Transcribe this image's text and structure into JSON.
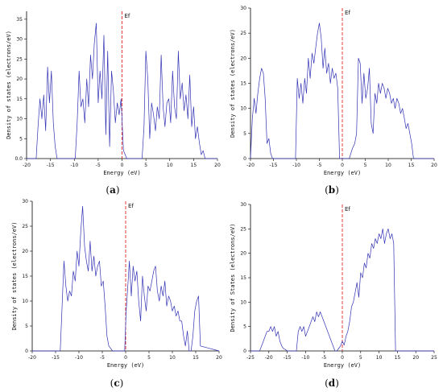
{
  "panel_labels": [
    "(a)",
    "(b)",
    "(c)",
    "(d)"
  ],
  "ef_label": "Ef",
  "chart_data": [
    {
      "id": "a",
      "type": "line",
      "xlabel": "Energy (eV)",
      "ylabel": "Density of states (electrons/eV)",
      "xlim": [
        -20,
        20
      ],
      "ylim": [
        0,
        37
      ],
      "xticks": [
        -20,
        -15,
        -10,
        -5,
        0,
        5,
        10,
        15,
        20
      ],
      "yticks": [
        0,
        5,
        10,
        15,
        20,
        25,
        30,
        35
      ],
      "ytick_labels": [
        "0.0",
        "5",
        "10",
        "15",
        "20",
        "25",
        "30",
        "35"
      ],
      "fermi_level": 0,
      "series": [
        {
          "x": [
            -20,
            -18,
            -17.6,
            -17.2,
            -16.8,
            -16.4,
            -16,
            -15.6,
            -15.2,
            -14.8,
            -14.4,
            -14,
            -13.6,
            -12,
            -9.8,
            -9.4,
            -9,
            -8.6,
            -8.2,
            -7.8,
            -7.4,
            -7,
            -6.6,
            -6.2,
            -5.8,
            -5.4,
            -5,
            -4.6,
            -4.2,
            -3.8,
            -3.4,
            -3,
            -2.6,
            -2.2,
            -1.8,
            -1.4,
            -1,
            -0.6,
            -0.2,
            0.3,
            1,
            4.2,
            4.6,
            5,
            5.4,
            5.8,
            6.2,
            6.6,
            7,
            7.4,
            7.8,
            8.2,
            8.6,
            9,
            9.4,
            9.8,
            10.2,
            10.6,
            11,
            11.4,
            11.8,
            12.2,
            12.6,
            13,
            13.4,
            13.8,
            14.2,
            14.6,
            15,
            15.4,
            15.8,
            16.2,
            16.6,
            17,
            17.4,
            20
          ],
          "y": [
            0,
            0,
            8,
            15,
            10,
            16,
            7,
            23,
            14,
            22,
            9,
            3,
            0,
            0,
            0,
            9,
            22,
            13,
            15,
            9,
            20,
            13,
            26,
            20,
            29,
            34,
            14,
            22,
            15,
            31,
            6,
            27,
            3,
            22,
            17,
            9,
            14,
            11,
            15,
            2,
            0,
            0,
            8,
            27,
            20,
            5,
            14,
            11,
            7,
            13,
            10,
            26,
            13,
            8,
            14,
            15,
            9,
            22,
            13,
            10,
            27,
            15,
            19,
            12,
            16,
            10,
            21,
            8,
            13,
            5,
            8,
            4,
            1,
            2,
            0,
            0
          ]
        }
      ]
    },
    {
      "id": "b",
      "type": "line",
      "xlabel": "Energy (eV)",
      "ylabel": "Density of states (electrons/eV)",
      "xlim": [
        -20,
        20
      ],
      "ylim": [
        0,
        30
      ],
      "xticks": [
        -20,
        -15,
        -10,
        -5,
        0,
        5,
        10,
        15,
        20
      ],
      "yticks": [
        0,
        5,
        10,
        15,
        20,
        25,
        30
      ],
      "ytick_labels": [
        "0",
        "5",
        "10",
        "15",
        "20",
        "25",
        "30"
      ],
      "fermi_level": 0,
      "series": [
        {
          "x": [
            -20,
            -19.6,
            -19.2,
            -18.8,
            -18.4,
            -18,
            -17.6,
            -17.2,
            -16.8,
            -16.4,
            -16,
            -15.6,
            -15.2,
            -14.8,
            -14.4,
            -14,
            -13.6,
            -12,
            -10.2,
            -9.8,
            -9.4,
            -9,
            -8.6,
            -8.2,
            -7.8,
            -7.4,
            -7,
            -6.6,
            -6.2,
            -5.8,
            -5.4,
            -5,
            -4.6,
            -4.2,
            -3.8,
            -3.4,
            -3,
            -2.6,
            -2.2,
            -1.8,
            -1.4,
            -1,
            -0.6,
            1.5,
            2.2,
            2.7,
            3.1,
            3.5,
            3.9,
            4.3,
            4.7,
            5.1,
            5.5,
            5.9,
            6.3,
            6.7,
            7.1,
            7.5,
            7.9,
            8.3,
            8.7,
            9.1,
            9.5,
            9.9,
            10.3,
            10.7,
            11.1,
            11.5,
            11.9,
            12.3,
            12.7,
            13.1,
            13.5,
            13.9,
            14.3,
            14.7,
            15.1,
            15.5,
            16,
            20
          ],
          "y": [
            0,
            8,
            12,
            9,
            13,
            16,
            18,
            17,
            12,
            3,
            4,
            1,
            0,
            0,
            0,
            0,
            0,
            0,
            0,
            16,
            12,
            15,
            11,
            16,
            13,
            20,
            16,
            21,
            19,
            22,
            25,
            27,
            24,
            18,
            22,
            17,
            19,
            15,
            18,
            16,
            17,
            14,
            0,
            0,
            2,
            3,
            5,
            20,
            19,
            11,
            17,
            12,
            14,
            18,
            7,
            5,
            13,
            11,
            15,
            13,
            15,
            14,
            12,
            14,
            13,
            11,
            12,
            10,
            12,
            11,
            9,
            10,
            8,
            6,
            7,
            5,
            3,
            0,
            0,
            0
          ]
        }
      ]
    },
    {
      "id": "c",
      "type": "line",
      "xlabel": "Energy (eV)",
      "ylabel": "Density of states (electrons/eV)",
      "xlim": [
        -20,
        20
      ],
      "ylim": [
        0,
        30
      ],
      "xticks": [
        -20,
        -15,
        -10,
        -5,
        0,
        5,
        10,
        15,
        20
      ],
      "yticks": [
        0,
        5,
        10,
        15,
        20,
        25,
        30
      ],
      "ytick_labels": [
        "0",
        "5",
        "10",
        "15",
        "20",
        "25",
        "30"
      ],
      "fermi_level": 0,
      "series": [
        {
          "x": [
            -20,
            -14,
            -13.6,
            -13.2,
            -12.8,
            -12.4,
            -12,
            -11.6,
            -11.2,
            -10.8,
            -10.4,
            -10,
            -9.6,
            -9.2,
            -8.8,
            -8.4,
            -8,
            -7.6,
            -7.2,
            -6.8,
            -6.4,
            -6,
            -5.6,
            -5.2,
            -4.8,
            -4.4,
            -4,
            -3.6,
            -2.8,
            -0.2,
            0.1,
            0.4,
            0.8,
            1.2,
            1.6,
            2,
            2.4,
            2.8,
            3.2,
            3.6,
            4,
            4.4,
            4.8,
            5.2,
            5.6,
            6,
            6.4,
            6.8,
            7.2,
            7.6,
            8,
            8.4,
            8.8,
            9.2,
            9.6,
            10,
            10.4,
            10.8,
            11.2,
            11.6,
            12,
            12.4,
            12.8,
            13.2,
            13.6,
            14,
            14.4,
            14.8,
            15.2,
            15.6,
            16,
            20
          ],
          "y": [
            0,
            0,
            9,
            18,
            13,
            10,
            12,
            11,
            16,
            14,
            20,
            17,
            24,
            29,
            21,
            18,
            16,
            22,
            16,
            19,
            15,
            17,
            18,
            13,
            14,
            9,
            3,
            1,
            0,
            0,
            8,
            12,
            18,
            11,
            17,
            14,
            16,
            10,
            6,
            15,
            11,
            8,
            13,
            12,
            14,
            16,
            17,
            12,
            10,
            13,
            11,
            14,
            9,
            11,
            10,
            8,
            9,
            7,
            8,
            6,
            6,
            3,
            1,
            4,
            0,
            0,
            3,
            8,
            10,
            11,
            1,
            0
          ]
        }
      ]
    },
    {
      "id": "d",
      "type": "line",
      "xlabel": "Energy (eV)",
      "ylabel": "Density of States (electrons/eV)",
      "xlim": [
        -25,
        25
      ],
      "ylim": [
        0,
        30
      ],
      "xticks": [
        -25,
        -20,
        -15,
        -10,
        -5,
        0,
        5,
        10,
        15,
        20,
        25
      ],
      "yticks": [
        0,
        5,
        10,
        15,
        20,
        25,
        30
      ],
      "ytick_labels": [
        "0",
        "5",
        "10",
        "15",
        "20",
        "25",
        "30"
      ],
      "fermi_level": 0,
      "series": [
        {
          "x": [
            -25,
            -22.5,
            -22,
            -21.5,
            -21,
            -20.5,
            -20,
            -19.5,
            -19,
            -18.5,
            -18,
            -17.5,
            -17,
            -16.5,
            -16,
            -15.5,
            -15,
            -14,
            -12.5,
            -12,
            -11.5,
            -11,
            -10.5,
            -10,
            -9.5,
            -9,
            -8.5,
            -8,
            -7.5,
            -7,
            -6.5,
            -6,
            -5.5,
            -5,
            -4.5,
            -4,
            -3.5,
            -3,
            -2.5,
            -2,
            -1.5,
            -1,
            -0.5,
            0,
            0.5,
            1,
            1.5,
            2,
            2.5,
            3,
            3.5,
            4,
            4.5,
            5,
            5.5,
            6,
            6.5,
            7,
            7.5,
            8,
            8.5,
            9,
            9.5,
            10,
            10.5,
            11,
            11.5,
            12,
            12.5,
            13,
            13.5,
            14,
            14.5,
            25
          ],
          "y": [
            0,
            0,
            1,
            2,
            3,
            4,
            4,
            5,
            4,
            5,
            3,
            4,
            2,
            1,
            0.5,
            0.3,
            0,
            0,
            0,
            4,
            5,
            4,
            5,
            3,
            4,
            5,
            6,
            7,
            6,
            8,
            7,
            8,
            7,
            6,
            5,
            4,
            3,
            2,
            1,
            0,
            0,
            0.5,
            1,
            2,
            1.2,
            3,
            4,
            6,
            9,
            10,
            12,
            14,
            11,
            16,
            15,
            18,
            17,
            20,
            19,
            22,
            21,
            23,
            22,
            24,
            23,
            25,
            22,
            24,
            25,
            23,
            24,
            22,
            0,
            0
          ]
        }
      ]
    }
  ]
}
